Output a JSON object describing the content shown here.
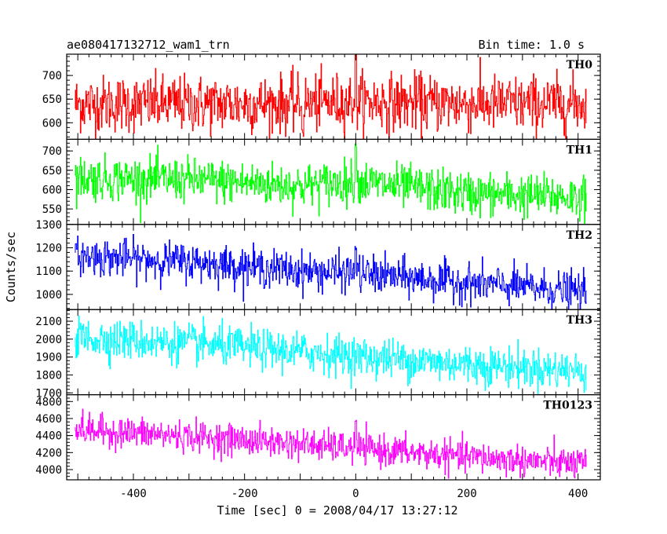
{
  "chart_data": {
    "type": "line",
    "title": "ae080417132712_wam1_trn",
    "subtitle": "Bin time: 1.0 s",
    "xlabel": "Time [sec] 0 = 2008/04/17 13:27:12",
    "ylabel": "Counts/sec",
    "xlim": [
      -520,
      440
    ],
    "x_ticks": [
      -400,
      -200,
      0,
      200,
      400
    ],
    "x_range": [
      -505,
      415
    ],
    "bin_time": 1.0,
    "grid": false,
    "panels": [
      {
        "name": "TH0",
        "color": "#ff0000",
        "ylim": [
          565,
          745
        ],
        "yticks": [
          600,
          650,
          700
        ],
        "trend": [
          [
            -505,
            640
          ],
          [
            -300,
            640
          ],
          [
            -100,
            640
          ],
          [
            0,
            645
          ],
          [
            200,
            640
          ],
          [
            415,
            640
          ]
        ],
        "noise_sd": 30,
        "features": [
          {
            "x": 0,
            "value": 745
          },
          {
            "x": -95,
            "value": 580
          }
        ]
      },
      {
        "name": "TH1",
        "color": "#00ff00",
        "ylim": [
          510,
          730
        ],
        "yticks": [
          550,
          600,
          650,
          700
        ],
        "trend": [
          [
            -505,
            630
          ],
          [
            -300,
            625
          ],
          [
            -100,
            610
          ],
          [
            0,
            620
          ],
          [
            200,
            590
          ],
          [
            415,
            580
          ]
        ],
        "noise_sd": 28,
        "features": [
          {
            "x": 0,
            "value": 725
          }
        ]
      },
      {
        "name": "TH2",
        "color": "#0000ff",
        "ylim": [
          935,
          1300
        ],
        "yticks": [
          1000,
          1100,
          1200,
          1300
        ],
        "trend": [
          [
            -505,
            1165
          ],
          [
            -300,
            1140
          ],
          [
            -100,
            1100
          ],
          [
            0,
            1090
          ],
          [
            200,
            1050
          ],
          [
            415,
            1010
          ]
        ],
        "noise_sd": 40,
        "features": [
          {
            "x": 0,
            "value": 1200
          }
        ]
      },
      {
        "name": "TH3",
        "color": "#00ffff",
        "ylim": [
          1690,
          2165
        ],
        "yticks": [
          1700,
          1800,
          1900,
          2000,
          2100
        ],
        "trend": [
          [
            -505,
            2010
          ],
          [
            -300,
            1975
          ],
          [
            -100,
            1930
          ],
          [
            0,
            1905
          ],
          [
            200,
            1860
          ],
          [
            415,
            1820
          ]
        ],
        "noise_sd": 55
      },
      {
        "name": "TH0123",
        "color": "#ff00ff",
        "ylim": [
          3880,
          4880
        ],
        "yticks": [
          4000,
          4200,
          4400,
          4600,
          4800
        ],
        "trend": [
          [
            -505,
            4470
          ],
          [
            -300,
            4390
          ],
          [
            -100,
            4300
          ],
          [
            0,
            4250
          ],
          [
            200,
            4150
          ],
          [
            415,
            4060
          ]
        ],
        "noise_sd": 90,
        "features": [
          {
            "x": 0,
            "value": 4560
          }
        ]
      }
    ]
  }
}
